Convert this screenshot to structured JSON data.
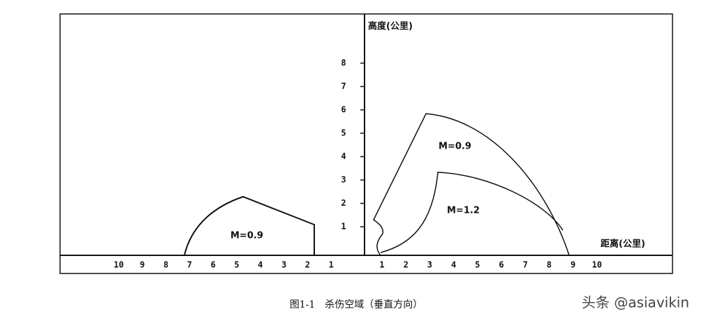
{
  "axis_title_y": "高度(公里)",
  "axis_title_x": "距离(公里)",
  "y_ticks": [
    "1",
    "2",
    "3",
    "4",
    "5",
    "6",
    "7",
    "8"
  ],
  "x_ticks_right": [
    "1",
    "2",
    "3",
    "4",
    "5",
    "6",
    "7",
    "8",
    "9",
    "10"
  ],
  "x_ticks_left": [
    "10",
    "9",
    "8",
    "7",
    "6",
    "5",
    "4",
    "3",
    "2",
    "1"
  ],
  "regions": [
    {
      "label": "M=0.9"
    },
    {
      "label": "M=1.2"
    },
    {
      "label": "M=0.9"
    }
  ],
  "caption": "图1-1　杀伤空域（垂直方向）",
  "watermark": "头条 @asiavikin"
}
